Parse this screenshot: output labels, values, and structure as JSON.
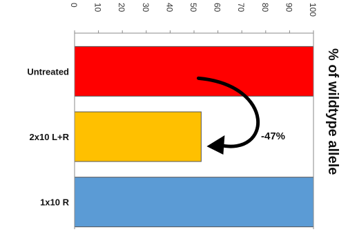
{
  "chart_data": {
    "type": "bar",
    "orientation": "horizontal",
    "categories": [
      "Untreated",
      "2x10 L+R",
      "1x10 R"
    ],
    "values": [
      100,
      53,
      100
    ],
    "colors": [
      "#ff0000",
      "#ffc000",
      "#5b9bd5"
    ],
    "xlabel": "% of wildtype allele",
    "xlim": [
      0,
      100
    ],
    "ticks": [
      "0",
      "10",
      "20",
      "30",
      "40",
      "50",
      "60",
      "70",
      "80",
      "90",
      "100"
    ],
    "annotations": [
      {
        "text": "-47%",
        "from": "Untreated",
        "to": "2x10 L+R"
      }
    ],
    "grid": false
  }
}
